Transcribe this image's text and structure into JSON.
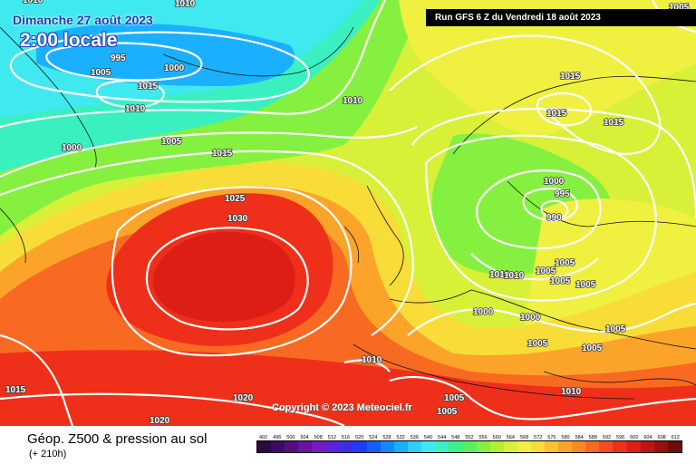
{
  "header": {
    "date": "Dimanche 27 août 2023",
    "local_time": "2:00 locale",
    "run": "Run GFS 6 Z du Vendredi 18 août 2023"
  },
  "copyright": "Copyright © 2023 Meteociel.fr",
  "footer": {
    "title": "Géop. Z500 & pression au sol",
    "subtitle": "(+ 210h)"
  },
  "legend": {
    "values": [
      "492",
      "496",
      "500",
      "504",
      "508",
      "512",
      "516",
      "520",
      "524",
      "528",
      "532",
      "536",
      "540",
      "544",
      "548",
      "552",
      "556",
      "560",
      "564",
      "568",
      "572",
      "576",
      "580",
      "584",
      "588",
      "592",
      "596",
      "600",
      "604",
      "608",
      "612"
    ],
    "colors": [
      "#2a0a40",
      "#3a0d62",
      "#520f82",
      "#6a12a4",
      "#7a18c0",
      "#5e20d8",
      "#3c2ee8",
      "#1f3cf4",
      "#1060ff",
      "#1488ff",
      "#1ab0ff",
      "#2ad0ff",
      "#40e8f0",
      "#3af0c0",
      "#40f090",
      "#58f060",
      "#86f040",
      "#b0f030",
      "#d8f038",
      "#f0f040",
      "#f8dc38",
      "#fcc030",
      "#fca42a",
      "#fc8826",
      "#f86a22",
      "#f44c1e",
      "#ee301a",
      "#dc1e16",
      "#c01414",
      "#9a1010",
      "#6c0c0c"
    ]
  },
  "map_colors": {
    "sea_cold": "#1ab0ff",
    "cyan": "#40e8f0",
    "mint": "#3af0c0",
    "green": "#86f040",
    "yellow_green": "#d8f038",
    "yellow": "#f0f040",
    "light_orange": "#f8dc38",
    "orange": "#fca42a",
    "dark_orange": "#f86a22",
    "red": "#ee301a",
    "dark_red": "#dc1e16"
  },
  "pressure_labels": [
    "995",
    "1005",
    "1000",
    "1015",
    "1010",
    "1010",
    "1000",
    "1005",
    "1015",
    "1025",
    "1030",
    "1015",
    "1015",
    "1015",
    "1000",
    "995",
    "990",
    "1005",
    "1010",
    "1010",
    "1005",
    "1005",
    "1005",
    "1000",
    "1000",
    "1005",
    "1005",
    "1005",
    "1010",
    "1010",
    "1015",
    "1020",
    "1020",
    "1005",
    "1005",
    "1010",
    "1010",
    "1005"
  ]
}
